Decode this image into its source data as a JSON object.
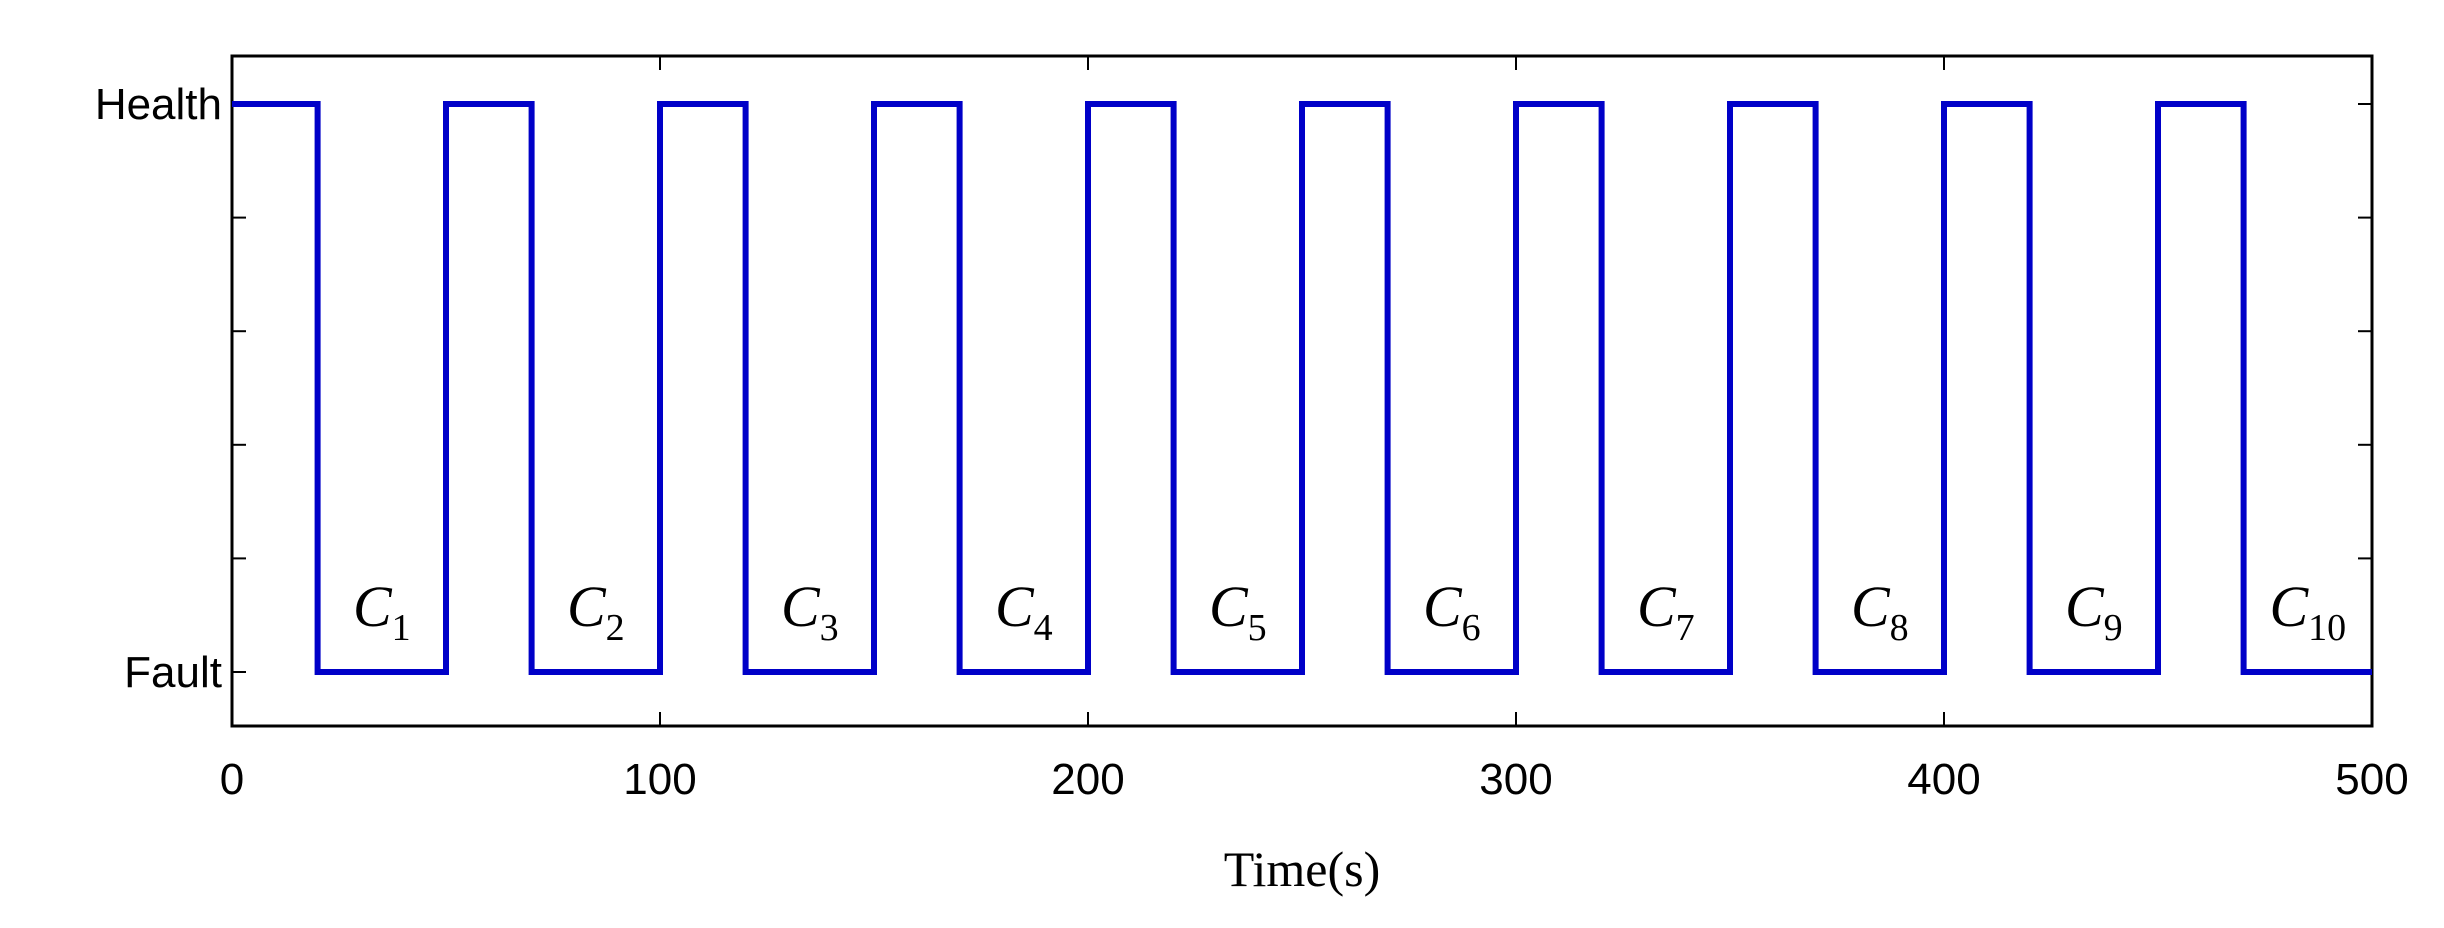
{
  "chart_data": {
    "type": "line",
    "title": "",
    "xlabel": "Time(s)",
    "ylabel": "",
    "xlim": [
      0,
      500
    ],
    "ylim": [
      0,
      1
    ],
    "x_ticks": [
      0,
      100,
      200,
      300,
      400,
      500
    ],
    "x_tick_labels": [
      "0",
      "100",
      "200",
      "300",
      "400",
      "500"
    ],
    "y_tick_values": [
      0,
      0.2,
      0.4,
      0.6,
      0.8,
      1
    ],
    "y_tick_labels": [
      "Fault",
      "",
      "",
      "",
      "",
      "Health"
    ],
    "series": [
      {
        "color": "#0000c8",
        "step": true,
        "x": [
          0,
          20,
          50,
          70,
          100,
          120,
          150,
          170,
          200,
          220,
          250,
          270,
          300,
          320,
          350,
          370,
          400,
          420,
          450,
          470,
          500
        ],
        "y": [
          1,
          0,
          1,
          0,
          1,
          0,
          1,
          0,
          1,
          0,
          1,
          0,
          1,
          0,
          1,
          0,
          1,
          0,
          1,
          0,
          0
        ]
      }
    ],
    "annotations": [
      {
        "letter": "C",
        "sub": "1",
        "x": 35
      },
      {
        "letter": "C",
        "sub": "2",
        "x": 85
      },
      {
        "letter": "C",
        "sub": "3",
        "x": 135
      },
      {
        "letter": "C",
        "sub": "4",
        "x": 185
      },
      {
        "letter": "C",
        "sub": "5",
        "x": 235
      },
      {
        "letter": "C",
        "sub": "6",
        "x": 285
      },
      {
        "letter": "C",
        "sub": "7",
        "x": 335
      },
      {
        "letter": "C",
        "sub": "8",
        "x": 385
      },
      {
        "letter": "C",
        "sub": "9",
        "x": 435
      },
      {
        "letter": "C",
        "sub": "10",
        "x": 485
      }
    ],
    "grid": false
  }
}
